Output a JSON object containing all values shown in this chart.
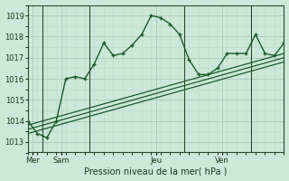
{
  "bg_color": "#cce8d8",
  "grid_color_major": "#aacabc",
  "grid_color_minor": "#bbdacc",
  "line_color": "#1a5c2a",
  "xlabel": "Pression niveau de la mer( hPa )",
  "ylim": [
    1012.5,
    1019.5
  ],
  "yticks": [
    1013,
    1014,
    1015,
    1016,
    1017,
    1018,
    1019
  ],
  "xlim": [
    0,
    27
  ],
  "day_labels": [
    "Mer",
    "Sam",
    "Jeu",
    "Ven"
  ],
  "day_positions": [
    0.5,
    3.5,
    13.5,
    20.5
  ],
  "vline_positions": [
    1.5,
    6.5,
    16.5,
    23.5
  ],
  "series1": [
    1014.0,
    1013.4,
    1013.2,
    1014.0,
    1016.0,
    1016.1,
    1016.0,
    1016.7,
    1017.7,
    1017.1,
    1017.2,
    1017.6,
    1018.1,
    1019.0,
    1018.9,
    1018.6,
    1018.1,
    1016.9,
    1016.2,
    1016.2,
    1016.5,
    1017.2,
    1017.2,
    1017.2,
    1018.1,
    1017.2,
    1017.1,
    1017.7
  ],
  "trend1": {
    "x": [
      0,
      27
    ],
    "y": [
      1013.8,
      1017.2
    ]
  },
  "trend2": {
    "x": [
      0,
      27
    ],
    "y": [
      1013.6,
      1017.0
    ]
  },
  "trend3": {
    "x": [
      0,
      27
    ],
    "y": [
      1013.4,
      1016.8
    ]
  },
  "ylabel_fontsize": 6,
  "tick_fontsize": 6
}
